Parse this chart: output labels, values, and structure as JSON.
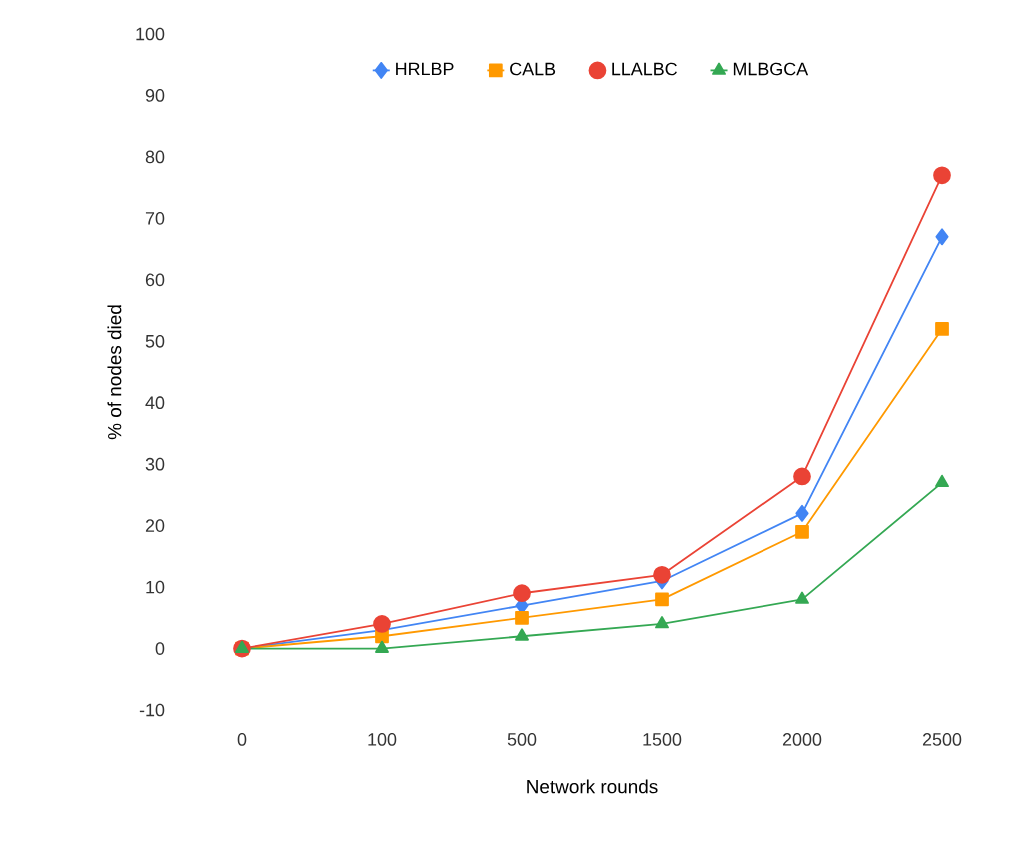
{
  "chart_data": {
    "type": "line",
    "xlabel": "Network rounds",
    "ylabel": "% of nodes died",
    "categories": [
      "0",
      "100",
      "500",
      "1500",
      "2000",
      "2500"
    ],
    "series": [
      {
        "name": "HRLBP",
        "color": "#4285f4",
        "marker": "diamond",
        "values": [
          0,
          3,
          7,
          11,
          22,
          67
        ]
      },
      {
        "name": "CALB",
        "color": "#ff9900",
        "marker": "square",
        "values": [
          0,
          2,
          5,
          8,
          19,
          52
        ]
      },
      {
        "name": "LLALBC",
        "color": "#ea4335",
        "marker": "circle",
        "values": [
          0,
          4,
          9,
          12,
          28,
          77
        ]
      },
      {
        "name": "MLBGCA",
        "color": "#34a853",
        "marker": "triangle",
        "values": [
          0,
          0,
          2,
          4,
          8,
          27
        ]
      }
    ],
    "ylim": [
      -10,
      100
    ],
    "yticks": [
      -10,
      0,
      10,
      20,
      30,
      40,
      50,
      60,
      70,
      80,
      90,
      100
    ],
    "legend": "top",
    "grid": false
  }
}
